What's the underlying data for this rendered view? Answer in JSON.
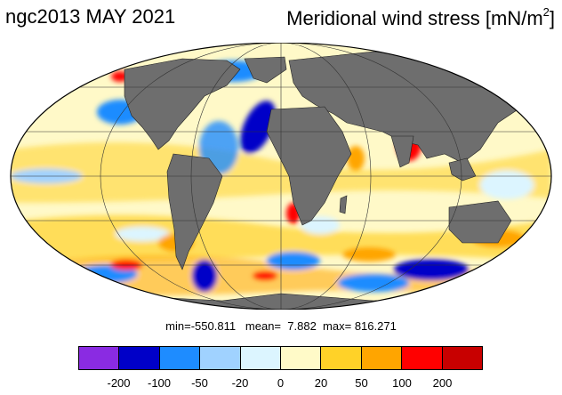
{
  "header": {
    "left_title": "ngc2013 MAY 2021",
    "right_title_main": "Meridional wind stress [mN/m",
    "right_title_sup": "2",
    "right_title_end": "]"
  },
  "map": {
    "projection": "Mollweide",
    "ocean_base_color": "#fff9c8",
    "land_color": "#6e6e6e"
  },
  "stats": {
    "min_label": "min=",
    "min": "-550.811",
    "mean_label": "mean=",
    "mean": "7.882",
    "max_label": "max=",
    "max": "816.271"
  },
  "colorbar": {
    "colors": [
      "#8a2be2",
      "#0000c8",
      "#1e8cff",
      "#a0d2ff",
      "#dcf5ff",
      "#fffac8",
      "#ffd228",
      "#ffa500",
      "#ff0000",
      "#c80000"
    ],
    "tick_labels": [
      "-200",
      "-100",
      "-50",
      "-20",
      "0",
      "20",
      "50",
      "100",
      "200"
    ]
  },
  "legend_icons": [
    "color-swatch"
  ]
}
